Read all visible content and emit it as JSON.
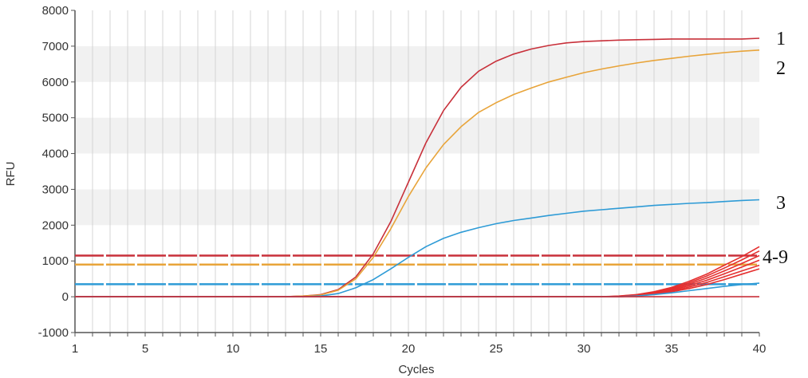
{
  "chart_data": {
    "type": "line",
    "title": "",
    "xlabel": "Cycles",
    "ylabel": "RFU",
    "xlim": [
      1,
      40
    ],
    "ylim": [
      -1000,
      8000
    ],
    "x_ticks": [
      1,
      5,
      10,
      15,
      20,
      25,
      30,
      35,
      40
    ],
    "y_ticks": [
      -1000,
      0,
      1000,
      2000,
      3000,
      4000,
      5000,
      6000,
      7000,
      8000
    ],
    "grid": "vertical lines at every cycle; alternating shaded horizontal bands",
    "legend": "none",
    "series": [
      {
        "color": "#c8303a",
        "values": [
          [
            1,
            0
          ],
          [
            13,
            0
          ],
          [
            14,
            20
          ],
          [
            15,
            60
          ],
          [
            16,
            200
          ],
          [
            17,
            550
          ],
          [
            18,
            1200
          ],
          [
            19,
            2100
          ],
          [
            20,
            3200
          ],
          [
            21,
            4300
          ],
          [
            22,
            5200
          ],
          [
            23,
            5850
          ],
          [
            24,
            6300
          ],
          [
            25,
            6580
          ],
          [
            26,
            6780
          ],
          [
            27,
            6920
          ],
          [
            28,
            7020
          ],
          [
            29,
            7090
          ],
          [
            30,
            7130
          ],
          [
            31,
            7150
          ],
          [
            32,
            7170
          ],
          [
            33,
            7180
          ],
          [
            34,
            7190
          ],
          [
            35,
            7200
          ],
          [
            36,
            7200
          ],
          [
            37,
            7200
          ],
          [
            38,
            7200
          ],
          [
            39,
            7200
          ],
          [
            40,
            7220
          ]
        ]
      },
      {
        "color": "#e8a43a",
        "values": [
          [
            1,
            0
          ],
          [
            13,
            0
          ],
          [
            14,
            20
          ],
          [
            15,
            50
          ],
          [
            16,
            180
          ],
          [
            17,
            500
          ],
          [
            18,
            1100
          ],
          [
            19,
            1900
          ],
          [
            20,
            2800
          ],
          [
            21,
            3600
          ],
          [
            22,
            4250
          ],
          [
            23,
            4750
          ],
          [
            24,
            5150
          ],
          [
            25,
            5420
          ],
          [
            26,
            5650
          ],
          [
            27,
            5830
          ],
          [
            28,
            6000
          ],
          [
            29,
            6130
          ],
          [
            30,
            6260
          ],
          [
            31,
            6360
          ],
          [
            32,
            6450
          ],
          [
            33,
            6530
          ],
          [
            34,
            6600
          ],
          [
            35,
            6660
          ],
          [
            36,
            6720
          ],
          [
            37,
            6770
          ],
          [
            38,
            6820
          ],
          [
            39,
            6860
          ],
          [
            40,
            6890
          ]
        ]
      },
      {
        "color": "#2e9bd6",
        "values": [
          [
            1,
            0
          ],
          [
            14,
            0
          ],
          [
            15,
            20
          ],
          [
            16,
            90
          ],
          [
            17,
            250
          ],
          [
            18,
            480
          ],
          [
            19,
            780
          ],
          [
            20,
            1100
          ],
          [
            21,
            1400
          ],
          [
            22,
            1630
          ],
          [
            23,
            1800
          ],
          [
            24,
            1930
          ],
          [
            25,
            2040
          ],
          [
            26,
            2130
          ],
          [
            27,
            2200
          ],
          [
            28,
            2270
          ],
          [
            29,
            2330
          ],
          [
            30,
            2390
          ],
          [
            31,
            2430
          ],
          [
            32,
            2470
          ],
          [
            33,
            2510
          ],
          [
            34,
            2550
          ],
          [
            35,
            2580
          ],
          [
            36,
            2610
          ],
          [
            37,
            2630
          ],
          [
            38,
            2660
          ],
          [
            39,
            2690
          ],
          [
            40,
            2710
          ]
        ]
      },
      {
        "color": "#e52f2f",
        "values": [
          [
            1,
            0
          ],
          [
            31,
            0
          ],
          [
            32,
            20
          ],
          [
            33,
            60
          ],
          [
            34,
            140
          ],
          [
            35,
            260
          ],
          [
            36,
            430
          ],
          [
            37,
            630
          ],
          [
            38,
            880
          ],
          [
            39,
            1120
          ],
          [
            40,
            1400
          ]
        ]
      },
      {
        "color": "#e52f2f",
        "values": [
          [
            1,
            0
          ],
          [
            31,
            0
          ],
          [
            32,
            15
          ],
          [
            33,
            55
          ],
          [
            34,
            125
          ],
          [
            35,
            235
          ],
          [
            36,
            390
          ],
          [
            37,
            580
          ],
          [
            38,
            800
          ],
          [
            39,
            1030
          ],
          [
            40,
            1280
          ]
        ]
      },
      {
        "color": "#e52f2f",
        "values": [
          [
            1,
            0
          ],
          [
            31,
            0
          ],
          [
            32,
            12
          ],
          [
            33,
            45
          ],
          [
            34,
            110
          ],
          [
            35,
            210
          ],
          [
            36,
            350
          ],
          [
            37,
            520
          ],
          [
            38,
            720
          ],
          [
            39,
            930
          ],
          [
            40,
            1150
          ]
        ]
      },
      {
        "color": "#e52f2f",
        "values": [
          [
            1,
            0
          ],
          [
            32,
            0
          ],
          [
            33,
            35
          ],
          [
            34,
            95
          ],
          [
            35,
            185
          ],
          [
            36,
            310
          ],
          [
            37,
            460
          ],
          [
            38,
            640
          ],
          [
            39,
            830
          ],
          [
            40,
            1020
          ]
        ]
      },
      {
        "color": "#e52f2f",
        "values": [
          [
            1,
            0
          ],
          [
            32,
            0
          ],
          [
            33,
            30
          ],
          [
            34,
            80
          ],
          [
            35,
            160
          ],
          [
            36,
            270
          ],
          [
            37,
            400
          ],
          [
            38,
            560
          ],
          [
            39,
            720
          ],
          [
            40,
            880
          ]
        ]
      },
      {
        "color": "#e52f2f",
        "values": [
          [
            1,
            0
          ],
          [
            32,
            0
          ],
          [
            33,
            25
          ],
          [
            34,
            70
          ],
          [
            35,
            140
          ],
          [
            36,
            230
          ],
          [
            37,
            340
          ],
          [
            38,
            480
          ],
          [
            39,
            630
          ],
          [
            40,
            780
          ]
        ]
      },
      {
        "color": "#2e9bd6",
        "values": [
          [
            1,
            0
          ],
          [
            32,
            0
          ],
          [
            33,
            20
          ],
          [
            34,
            60
          ],
          [
            35,
            110
          ],
          [
            36,
            170
          ],
          [
            37,
            230
          ],
          [
            38,
            290
          ],
          [
            39,
            340
          ],
          [
            40,
            380
          ]
        ]
      },
      {
        "color": "#c8303a",
        "values": [
          [
            1,
            0
          ],
          [
            40,
            0
          ]
        ]
      }
    ],
    "thresholds": [
      {
        "value": 1150,
        "color": "#c8303a"
      },
      {
        "value": 900,
        "color": "#e8a43a"
      },
      {
        "value": 350,
        "color": "#2e9bd6"
      }
    ],
    "annotations": [
      {
        "text": "1",
        "x": 40,
        "y": 7220
      },
      {
        "text": "2",
        "x": 40,
        "y": 6890
      },
      {
        "text": "3",
        "x": 40,
        "y": 2710
      },
      {
        "text": "4-9",
        "x": 40,
        "y": 1150
      }
    ]
  }
}
